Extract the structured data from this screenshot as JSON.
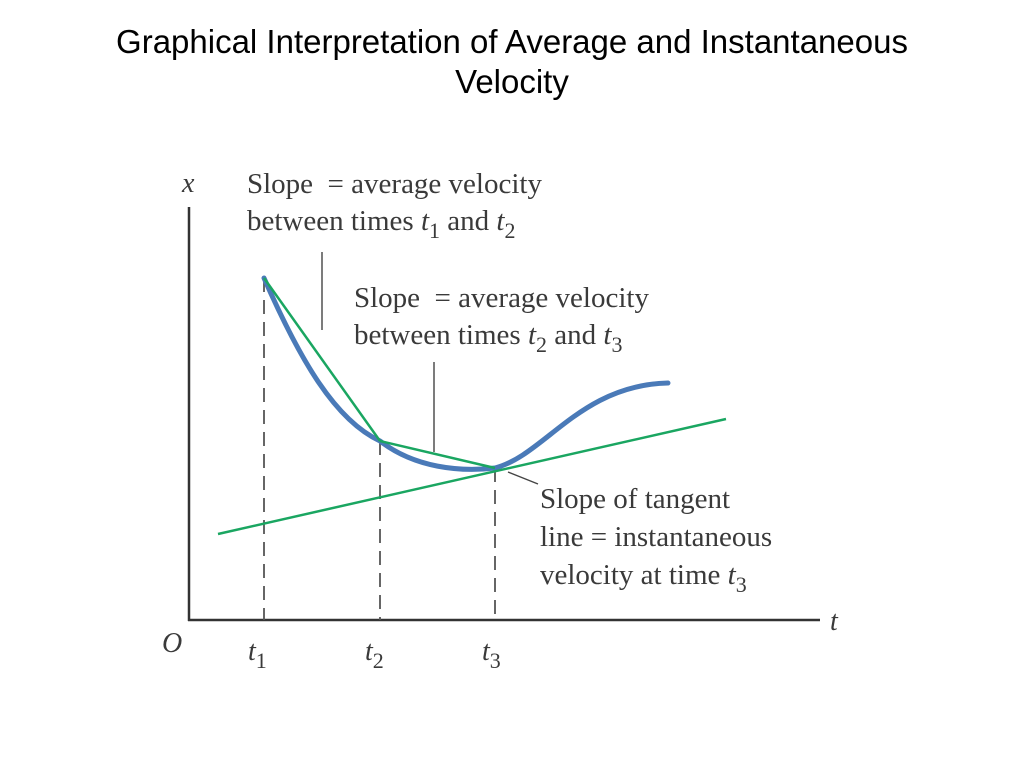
{
  "title": {
    "line1": "Graphical Interpretation of Average and Instantaneous",
    "line2": "Velocity"
  },
  "colors": {
    "curve": "#4a7ab8",
    "lines": "#1aa661",
    "axes": "#333333",
    "text": "#3a3a3a"
  },
  "axes": {
    "x_label": "t",
    "y_label": "x",
    "origin": "O"
  },
  "ticks": {
    "t1": {
      "base": "t",
      "sub": "1"
    },
    "t2": {
      "base": "t",
      "sub": "2"
    },
    "t3": {
      "base": "t",
      "sub": "3"
    }
  },
  "callouts": {
    "avg12": {
      "line1": "Slope  = average velocity",
      "line2_prefix": "between times ",
      "var_a": "t",
      "sub_a": "1",
      "and": " and ",
      "var_b": "t",
      "sub_b": "2"
    },
    "avg23": {
      "line1": "Slope  = average velocity",
      "line2_prefix": "between times ",
      "var_a": "t",
      "sub_a": "2",
      "and": " and ",
      "var_b": "t",
      "sub_b": "3"
    },
    "tangent": {
      "line1": "Slope of tangent",
      "line2": "line = instantaneous",
      "line3_prefix": "velocity at time ",
      "var": "t",
      "sub": "3"
    }
  }
}
